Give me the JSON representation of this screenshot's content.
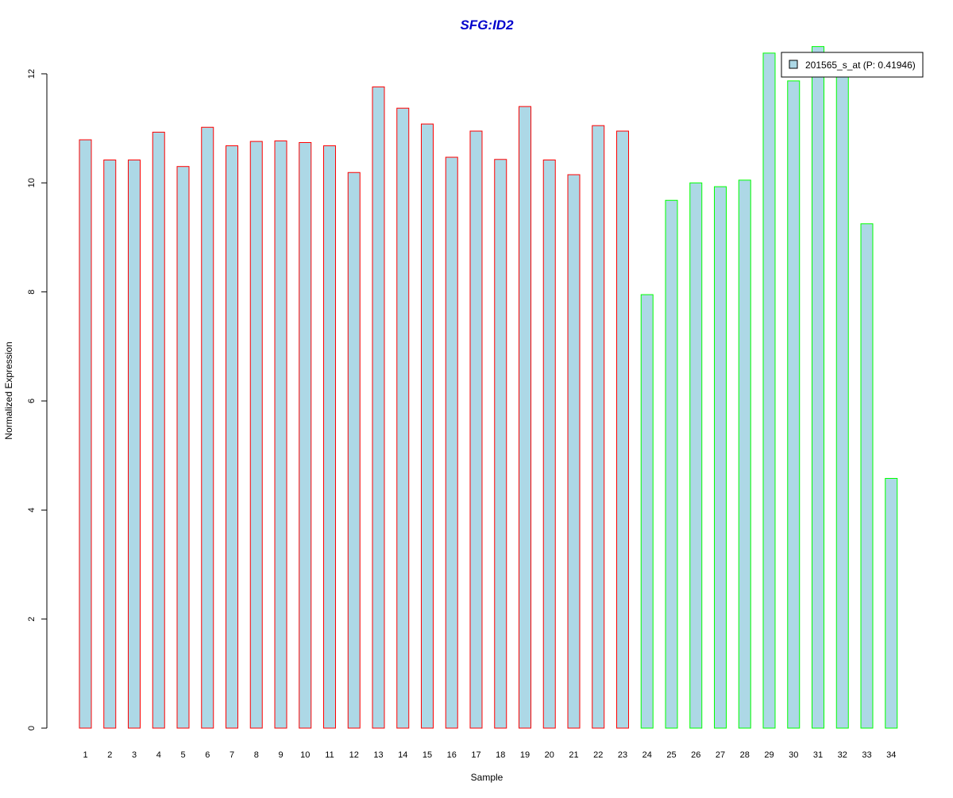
{
  "chart_data": {
    "type": "bar",
    "title": "SFG:ID2",
    "xlabel": "Sample",
    "ylabel": "Normalized Expression",
    "ylim": [
      0,
      12.5
    ],
    "y_ticks": [
      0,
      2,
      4,
      6,
      8,
      10,
      12
    ],
    "categories": [
      "1",
      "2",
      "3",
      "4",
      "5",
      "6",
      "7",
      "8",
      "9",
      "10",
      "11",
      "12",
      "13",
      "14",
      "15",
      "16",
      "17",
      "18",
      "19",
      "20",
      "21",
      "22",
      "23",
      "24",
      "25",
      "26",
      "27",
      "28",
      "29",
      "30",
      "31",
      "32",
      "33",
      "34"
    ],
    "series": [
      {
        "name": "201565_s_at (P: 0.41946)",
        "values": [
          10.79,
          10.42,
          10.42,
          10.93,
          10.3,
          11.02,
          10.68,
          10.76,
          10.77,
          10.74,
          10.68,
          10.19,
          11.76,
          11.37,
          11.08,
          10.47,
          10.95,
          10.43,
          11.4,
          10.42,
          10.15,
          11.05,
          10.95,
          7.95,
          9.68,
          10.0,
          9.93,
          10.05,
          12.38,
          11.87,
          12.5,
          12.2,
          9.25,
          4.58
        ]
      }
    ],
    "group_sizes": [
      23,
      11
    ],
    "legend": {
      "placement": "top-right",
      "label": "201565_s_at (P: 0.41946)"
    },
    "grid": false,
    "colors": {
      "title": "#0000cc",
      "bar_fill": "#add8e6",
      "group1_border": "#ff0000",
      "group2_border": "#00ff00",
      "axis": "#000000"
    }
  }
}
